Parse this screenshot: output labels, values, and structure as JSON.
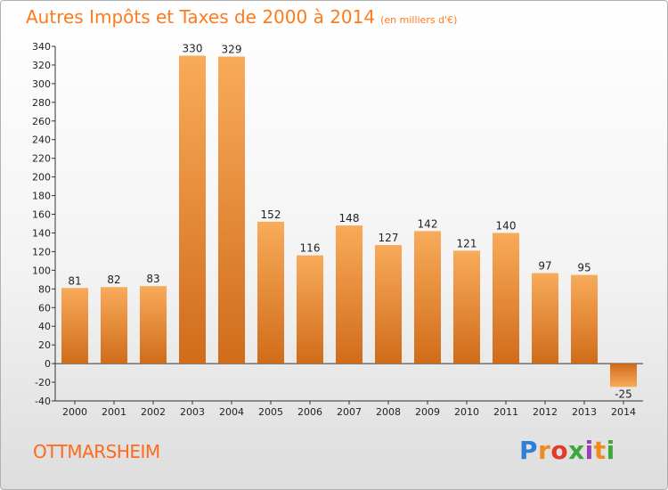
{
  "header": {
    "title": "Autres Impôts et Taxes de 2000 à 2014",
    "unit": "(en milliers d'€)"
  },
  "footer": {
    "city": "OTTMARSHEIM",
    "logo": "Proxiti"
  },
  "colors": {
    "accent": "#ff7a1c",
    "bar_light": "#f7a652",
    "bar_dark": "#d9731f"
  },
  "chart_data": {
    "type": "bar",
    "title": "Autres Impôts et Taxes de 2000 à 2014",
    "subtitle": "(en milliers d'€)",
    "xlabel": "",
    "ylabel": "",
    "categories": [
      "2000",
      "2001",
      "2002",
      "2003",
      "2004",
      "2005",
      "2006",
      "2007",
      "2008",
      "2009",
      "2010",
      "2011",
      "2012",
      "2013",
      "2014"
    ],
    "values": [
      81,
      82,
      83,
      330,
      329,
      152,
      116,
      148,
      127,
      142,
      121,
      140,
      97,
      95,
      -25
    ],
    "ylim": [
      -40,
      340
    ],
    "yticks": [
      -40,
      -20,
      0,
      20,
      40,
      60,
      80,
      100,
      120,
      140,
      160,
      180,
      200,
      220,
      240,
      260,
      280,
      300,
      320,
      340
    ],
    "grid": false,
    "legend": "none"
  }
}
